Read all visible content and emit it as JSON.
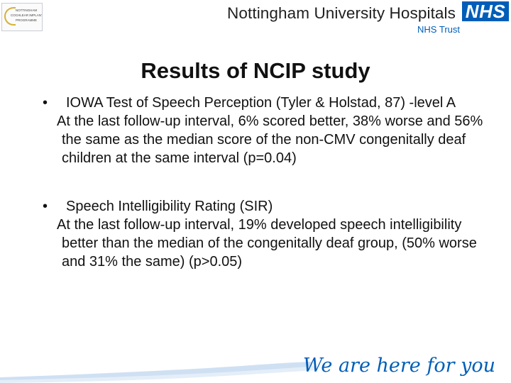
{
  "header": {
    "logo_lines": [
      "NOTTINGHAM",
      "COCHLEAR IMPLANT",
      "PROGRAMME"
    ],
    "org_name": "Nottingham University Hospitals",
    "nhs_badge": "NHS",
    "trust": "NHS Trust"
  },
  "slide": {
    "title": "Results of NCIP study",
    "bullets": [
      {
        "text": "IOWA Test of Speech Perception (Tyler & Holstad, 87) -level A",
        "detail": "At the last follow-up interval, 6% scored better, 38% worse and 56% the same as the median score of the non-CMV congenitally deaf children at the same interval (p=0.04)"
      },
      {
        "text": "Speech Intelligibility Rating (SIR)",
        "detail": "At the last follow-up interval, 19% developed speech intelligibility better than the median of the congenitally deaf group, (50% worse and 31% the same) (p>0.05)"
      }
    ]
  },
  "footer": {
    "tagline": "We are here for you",
    "accent_color": "#005eb8"
  }
}
